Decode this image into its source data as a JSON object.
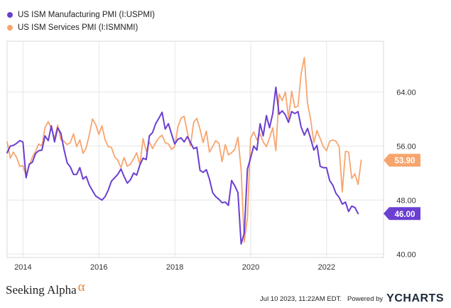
{
  "legend": [
    {
      "label": "US ISM Manufacturing PMI (I:USPMI)",
      "color": "#6a3fd1"
    },
    {
      "label": "US ISM Services PMI (I:ISMNMI)",
      "color": "#f7a56f"
    }
  ],
  "footer": {
    "brand": "Seeking Alpha",
    "brand_symbol": "α",
    "timestamp": "Jul 10 2023, 11:22AM EDT.",
    "powered_by": "Powered by",
    "ycharts_y": "Y",
    "ycharts_rest": "CHARTS"
  },
  "chart_data": {
    "type": "line",
    "title": "",
    "xlabel": "",
    "ylabel": "",
    "xlim": [
      2013.58,
      2023.5
    ],
    "ylim": [
      39.5,
      71.5
    ],
    "x_ticks": [
      2014,
      2016,
      2018,
      2020,
      2022
    ],
    "x_tick_labels": [
      "2014",
      "2016",
      "2018",
      "2020",
      "2022"
    ],
    "y_ticks": [
      40,
      48,
      56,
      64
    ],
    "y_tick_labels": [
      "40.00",
      "48.00",
      "56.00",
      "64.00"
    ],
    "grid": true,
    "legend_position": "top-left",
    "start": 2013.58,
    "step": 0.08333,
    "series": [
      {
        "name": "US ISM Manufacturing PMI (I:USPMI)",
        "color": "#6a3fd1",
        "last_label": "46.00",
        "values": [
          55.0,
          56.0,
          56.1,
          56.4,
          56.8,
          56.6,
          51.3,
          53.3,
          53.6,
          54.9,
          55.3,
          55.4,
          57.5,
          56.8,
          59.0,
          56.6,
          58.7,
          57.9,
          55.5,
          53.5,
          52.9,
          51.8,
          51.8,
          52.8,
          51.1,
          51.5,
          50.2,
          49.4,
          48.6,
          48.3,
          48.0,
          48.5,
          49.5,
          50.8,
          51.3,
          51.8,
          52.6,
          51.5,
          50.5,
          51.0,
          52.0,
          51.7,
          53.2,
          54.2,
          54.0,
          57.5,
          58.0,
          59.3,
          60.1,
          61.0,
          58.5,
          59.3,
          57.8,
          56.3,
          57.0,
          57.2,
          56.6,
          57.4,
          56.5,
          55.6,
          55.8,
          52.4,
          52.1,
          52.5,
          51.1,
          49.1,
          48.5,
          48.1,
          47.6,
          47.7,
          47.2,
          50.9,
          50.1,
          49.1,
          41.5,
          43.1,
          52.6,
          54.2,
          56.0,
          55.4,
          59.3,
          57.5,
          60.5,
          58.7,
          60.8,
          64.7,
          60.7,
          61.2,
          60.6,
          59.5,
          61.1,
          60.8,
          61.1,
          58.8,
          57.6,
          58.6,
          57.1,
          55.4,
          56.1,
          53.0,
          52.8,
          52.8,
          50.9,
          50.2,
          49.0,
          48.4,
          47.4,
          47.7,
          46.3,
          47.1,
          46.9,
          46.0
        ]
      },
      {
        "name": "US ISM Services PMI (I:ISMNMI)",
        "color": "#f7a56f",
        "last_label": "53.90",
        "values": [
          56.6,
          54.2,
          55.1,
          54.3,
          53.0,
          53.1,
          51.6,
          53.1,
          54.4,
          55.2,
          56.3,
          56.0,
          58.7,
          59.6,
          58.6,
          57.1,
          59.1,
          56.9,
          56.7,
          56.2,
          56.5,
          57.8,
          55.9,
          56.9,
          54.9,
          55.7,
          57.7,
          60.0,
          59.2,
          57.7,
          59.0,
          56.9,
          55.9,
          55.8,
          54.4,
          53.9,
          52.8,
          54.3,
          53.0,
          53.3,
          54.1,
          55.0,
          53.2,
          57.1,
          55.2,
          56.6,
          55.6,
          56.5,
          57.2,
          57.6,
          56.5,
          56.3,
          55.5,
          55.9,
          58.8,
          60.1,
          60.4,
          58.0,
          56.0,
          59.5,
          60.1,
          58.5,
          56.5,
          58.2,
          55.1,
          55.9,
          56.8,
          56.4,
          53.7,
          56.2,
          54.7,
          55.0,
          55.5,
          57.3,
          52.5,
          41.8,
          45.4,
          57.1,
          58.1,
          56.9,
          57.8,
          56.6,
          55.9,
          57.2,
          58.7,
          55.3,
          63.7,
          62.7,
          64.0,
          60.1,
          64.1,
          61.7,
          61.9,
          66.7,
          69.1,
          62.3,
          59.9,
          56.5,
          58.3,
          57.1,
          55.9,
          55.3,
          56.7,
          56.9,
          56.7,
          55.9,
          49.2,
          55.2,
          55.1,
          51.2,
          51.9,
          50.3,
          53.9
        ]
      }
    ]
  }
}
